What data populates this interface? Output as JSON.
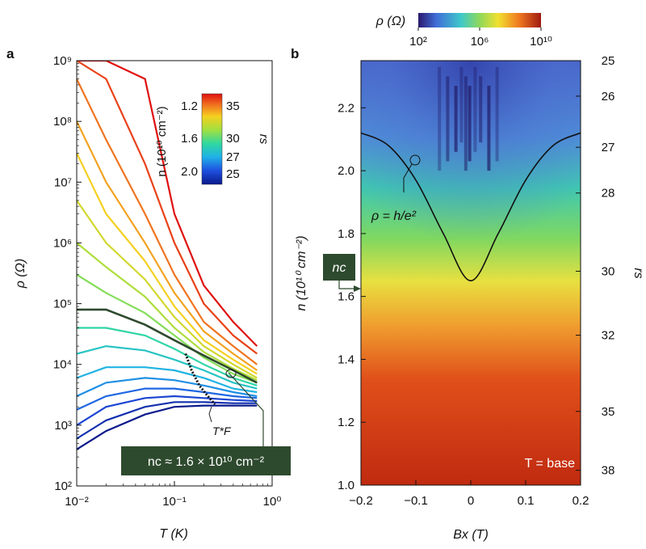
{
  "panel_a": {
    "letter": "a",
    "xlabel": "T (K)",
    "ylabel": "ρ (Ω)",
    "colorbar_label": "n (10¹⁰ cm⁻²)",
    "colorbar_rs_label": "rs",
    "colorbar_ticks_left": [
      "1.2",
      "1.6",
      "2.0"
    ],
    "colorbar_ticks_right": [
      "35",
      "30",
      "27",
      "25"
    ],
    "tf_label": "T*F",
    "nc_box_text": "nc ≈ 1.6 × 10¹⁰ cm⁻²",
    "box_color": "#2e4a2e"
  },
  "panel_b": {
    "letter": "b",
    "xlabel": "Bx (T)",
    "ylabel": "n (10¹⁰ cm⁻²)",
    "right_label": "rs",
    "colorbar_label": "ρ (Ω)",
    "colorbar_ticks": [
      "10²",
      "10⁶",
      "10¹⁰"
    ],
    "curve_label": "ρ = h/e²",
    "nc_tag": "nc",
    "base_label": "T = base",
    "rs_ticks": [
      "25",
      "26",
      "27",
      "28",
      "30",
      "32",
      "35",
      "38"
    ],
    "colormap": [
      "#2a1a6e",
      "#3f6fd8",
      "#3fc9c9",
      "#8fd85a",
      "#f0e030",
      "#f07a20",
      "#c02a10"
    ]
  },
  "chart_data": [
    {
      "type": "line",
      "title": "",
      "xlabel": "T (K)",
      "ylabel": "ρ (Ω)",
      "xscale": "log",
      "yscale": "log",
      "xlim": [
        0.01,
        1
      ],
      "ylim": [
        100,
        1000000000
      ],
      "x_ticks": [
        "10⁻²",
        "10⁻¹",
        "10⁰"
      ],
      "y_ticks": [
        "10²",
        "10³",
        "10⁴",
        "10⁵",
        "10⁶",
        "10⁷",
        "10⁸",
        "10⁹"
      ],
      "legend": "colorbar (top-right): n from 1.2 to 2.0 ×10¹⁰ cm⁻², rs from 35 to 25",
      "highlight_series": {
        "name": "nc",
        "x": [
          0.01,
          0.02,
          0.05,
          0.1,
          0.2,
          0.4,
          0.7
        ],
        "y": [
          80000,
          80000,
          45000,
          25000,
          14000,
          8000,
          5000
        ]
      },
      "tf_marker": {
        "x": [
          0.13,
          0.15,
          0.18,
          0.22,
          0.26
        ],
        "y": [
          15000,
          8000,
          4500,
          3000,
          2200
        ]
      },
      "series": [
        {
          "n": 1.2,
          "x": [
            0.01,
            0.02,
            0.05,
            0.1,
            0.2,
            0.4,
            0.7
          ],
          "y": [
            1000000000,
            1000000000,
            500000000,
            3000000,
            200000,
            50000,
            20000
          ]
        },
        {
          "n": 1.25,
          "x": [
            0.01,
            0.02,
            0.05,
            0.1,
            0.2,
            0.4,
            0.7
          ],
          "y": [
            1000000000,
            500000000,
            20000000,
            1000000,
            100000,
            30000,
            15000
          ]
        },
        {
          "n": 1.3,
          "x": [
            0.01,
            0.02,
            0.05,
            0.1,
            0.2,
            0.4,
            0.7
          ],
          "y": [
            500000000,
            50000000,
            3000000,
            300000,
            50000,
            20000,
            10000
          ]
        },
        {
          "n": 1.35,
          "x": [
            0.01,
            0.02,
            0.05,
            0.1,
            0.2,
            0.4,
            0.7
          ],
          "y": [
            100000000,
            10000000,
            1000000,
            150000,
            35000,
            15000,
            8000
          ]
        },
        {
          "n": 1.4,
          "x": [
            0.01,
            0.02,
            0.05,
            0.1,
            0.2,
            0.4,
            0.7
          ],
          "y": [
            30000000,
            3000000,
            500000,
            90000,
            25000,
            12000,
            7000
          ]
        },
        {
          "n": 1.45,
          "x": [
            0.01,
            0.02,
            0.05,
            0.1,
            0.2,
            0.4,
            0.7
          ],
          "y": [
            5000000,
            1000000,
            250000,
            60000,
            20000,
            10000,
            6000
          ]
        },
        {
          "n": 1.5,
          "x": [
            0.01,
            0.02,
            0.05,
            0.1,
            0.2,
            0.4,
            0.7
          ],
          "y": [
            1000000,
            400000,
            130000,
            40000,
            16000,
            8500,
            5500
          ]
        },
        {
          "n": 1.55,
          "x": [
            0.01,
            0.02,
            0.05,
            0.1,
            0.2,
            0.4,
            0.7
          ],
          "y": [
            300000,
            150000,
            70000,
            30000,
            13000,
            7000,
            5000
          ]
        },
        {
          "n": 1.65,
          "x": [
            0.01,
            0.02,
            0.05,
            0.1,
            0.2,
            0.4,
            0.7
          ],
          "y": [
            40000,
            40000,
            30000,
            18000,
            10000,
            6000,
            4500
          ]
        },
        {
          "n": 1.7,
          "x": [
            0.01,
            0.02,
            0.05,
            0.1,
            0.2,
            0.4,
            0.7
          ],
          "y": [
            15000,
            20000,
            17000,
            12000,
            8000,
            5000,
            4000
          ]
        },
        {
          "n": 1.75,
          "x": [
            0.01,
            0.02,
            0.05,
            0.1,
            0.2,
            0.4,
            0.7
          ],
          "y": [
            6000,
            9000,
            9000,
            8000,
            6000,
            4000,
            3500
          ]
        },
        {
          "n": 1.8,
          "x": [
            0.01,
            0.02,
            0.05,
            0.1,
            0.2,
            0.4,
            0.7
          ],
          "y": [
            3000,
            5000,
            6000,
            5500,
            4500,
            3500,
            3000
          ]
        },
        {
          "n": 1.85,
          "x": [
            0.01,
            0.02,
            0.05,
            0.1,
            0.2,
            0.4,
            0.7
          ],
          "y": [
            1800,
            3000,
            4000,
            4000,
            3500,
            3000,
            2800
          ]
        },
        {
          "n": 1.9,
          "x": [
            0.01,
            0.02,
            0.05,
            0.1,
            0.2,
            0.4,
            0.7
          ],
          "y": [
            1000,
            2000,
            2800,
            3000,
            2800,
            2600,
            2500
          ]
        },
        {
          "n": 1.95,
          "x": [
            0.01,
            0.02,
            0.05,
            0.1,
            0.2,
            0.4,
            0.7
          ],
          "y": [
            600,
            1200,
            2000,
            2400,
            2400,
            2300,
            2300
          ]
        },
        {
          "n": 2.0,
          "x": [
            0.01,
            0.02,
            0.05,
            0.1,
            0.2,
            0.4,
            0.7
          ],
          "y": [
            400,
            800,
            1500,
            2000,
            2100,
            2100,
            2100
          ]
        }
      ]
    },
    {
      "type": "heatmap",
      "title": "",
      "xlabel": "Bx (T)",
      "ylabel": "n (10¹⁰ cm⁻²)",
      "xlim": [
        -0.2,
        0.2
      ],
      "ylim": [
        1.0,
        2.35
      ],
      "x_ticks": [
        "−0.2",
        "−0.1",
        "0",
        "0.1",
        "0.2"
      ],
      "y_ticks": [
        "1.0",
        "1.2",
        "1.4",
        "1.6",
        "1.8",
        "2.0",
        "2.2"
      ],
      "colorbar": {
        "label": "ρ (Ω)",
        "scale": "log",
        "range": [
          100,
          10000000000
        ],
        "position": "top"
      },
      "right_axis": {
        "label": "rs",
        "ticks": [
          25,
          26,
          27,
          28,
          30,
          32,
          35,
          38
        ]
      },
      "contour": {
        "label": "ρ = h/e²",
        "x": [
          -0.2,
          -0.15,
          -0.1,
          -0.05,
          0,
          0.05,
          0.1,
          0.15,
          0.2
        ],
        "y": [
          2.12,
          2.08,
          1.97,
          1.8,
          1.65,
          1.8,
          1.97,
          2.08,
          2.12
        ]
      },
      "nc": 1.63,
      "annotation": "T = base"
    }
  ]
}
